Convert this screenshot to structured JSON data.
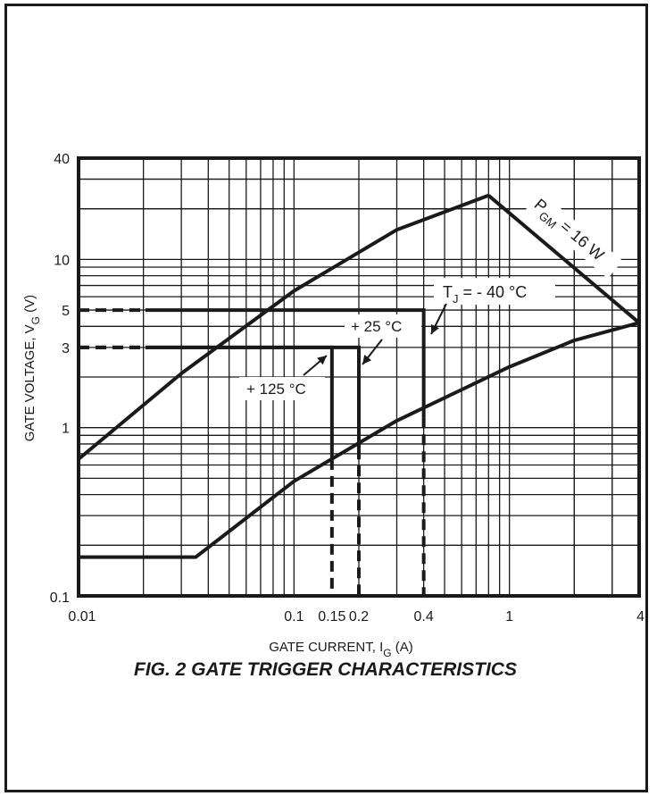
{
  "chart_data": {
    "type": "line",
    "title": "FIG. 2 GATE TRIGGER CHARACTERISTICS",
    "xlabel": {
      "main": "GATE CURRENT, I",
      "sub": "G",
      "unit": " (A)"
    },
    "ylabel": {
      "main": "GATE VOLTAGE, V",
      "sub": "G",
      "unit": " (V)"
    },
    "x_scale": "log",
    "y_scale": "log",
    "xlim": [
      0.01,
      4
    ],
    "ylim": [
      0.1,
      40
    ],
    "grid": true,
    "x_ticks": [
      {
        "value": 0.01,
        "label": "0.01"
      },
      {
        "value": 0.1,
        "label": "0.1"
      },
      {
        "value": 0.15,
        "label": "0.15"
      },
      {
        "value": 0.2,
        "label": "0.2"
      },
      {
        "value": 0.4,
        "label": "0.4"
      },
      {
        "value": 1,
        "label": "1"
      },
      {
        "value": 4,
        "label": "4"
      }
    ],
    "y_ticks": [
      {
        "value": 0.1,
        "label": "0.1"
      },
      {
        "value": 1,
        "label": "1"
      },
      {
        "value": 3,
        "label": "3"
      },
      {
        "value": 5,
        "label": "5"
      },
      {
        "value": 10,
        "label": "10"
      },
      {
        "value": 40,
        "label": "40"
      }
    ],
    "curves": [
      {
        "id": "max-limit",
        "style": "solid",
        "points": [
          [
            0.01,
            0.65
          ],
          [
            0.03,
            2.1
          ],
          [
            0.1,
            6.5
          ],
          [
            0.3,
            15
          ],
          [
            0.8,
            24
          ]
        ]
      },
      {
        "id": "pgm-limit",
        "style": "solid",
        "points": [
          [
            0.8,
            24
          ],
          [
            4,
            4.2
          ]
        ]
      },
      {
        "id": "min-limit",
        "style": "solid",
        "points": [
          [
            0.01,
            0.17
          ],
          [
            0.035,
            0.17
          ],
          [
            0.1,
            0.48
          ],
          [
            0.3,
            1.1
          ],
          [
            1,
            2.3
          ],
          [
            2,
            3.3
          ],
          [
            4,
            4.2
          ]
        ]
      }
    ],
    "regions": [
      {
        "id": "tj-minus40",
        "ig": 0.4,
        "vg": 5,
        "vg_low": 1.15
      },
      {
        "id": "tj-25",
        "ig": 0.2,
        "vg": 3,
        "vg_low": 0.75
      },
      {
        "id": "tj-125",
        "ig": 0.15,
        "vg": 3,
        "vg_low": 0.65
      }
    ],
    "annotations": [
      {
        "id": "pgm",
        "main": "P",
        "sub": "GM",
        "rest": " = 16 W"
      },
      {
        "id": "tj-minus40",
        "main": "T",
        "sub": "J",
        "rest": " = - 40 °C"
      },
      {
        "id": "tj-25",
        "text": "+ 25 °C"
      },
      {
        "id": "tj-125",
        "text": "+ 125 °C"
      }
    ]
  },
  "colors": {
    "ink": "#1a1a1a",
    "background": "#ffffff"
  }
}
